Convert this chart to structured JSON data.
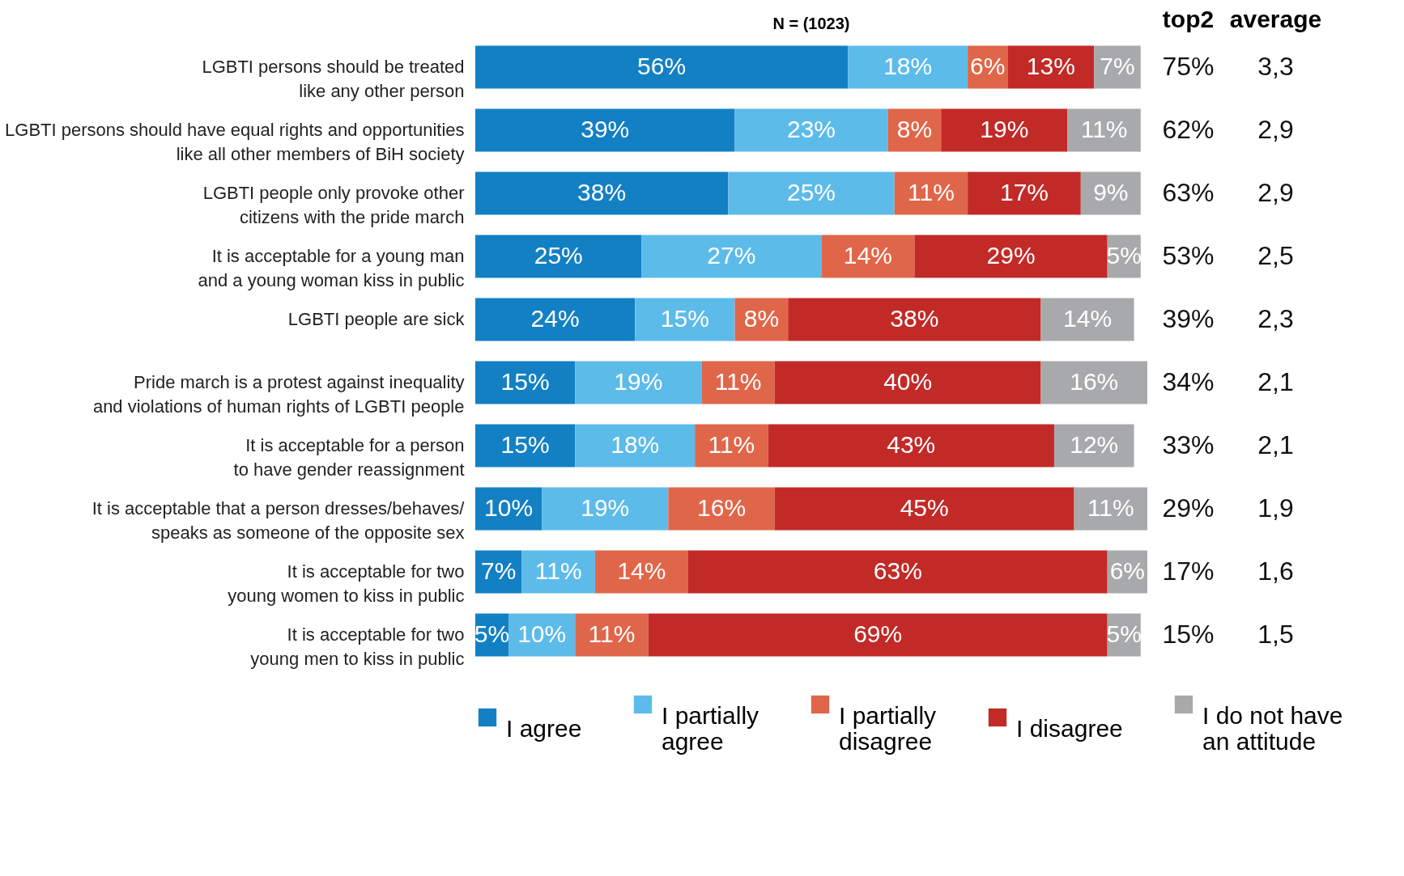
{
  "chart_data": {
    "type": "bar",
    "orientation": "horizontal",
    "stacked": true,
    "tick_labels": "y",
    "grid": false,
    "legend": "bottom",
    "categories": [
      "LGBTI persons should be treated like any other person",
      "LGBTI persons should have equal rights and opportunities like all other members of BiH society",
      "LGBTI people only provoke other citizens with the pride march",
      "It is acceptable for a young man and a young woman kiss in public",
      "LGBTI people are sick",
      "Pride march is a protest against inequality and violations of human rights of LGBTI people",
      "It is acceptable for a person to have gender reassignment",
      "It is acceptable that a person dresses/behaves/ speaks as someone of the opposite sex",
      "It is acceptable for two young women to kiss in public",
      "It is acceptable for two young men to kiss in public"
    ],
    "series": [
      {
        "name": "I agree",
        "color": "#1380c4",
        "values": [
          56,
          39,
          38,
          25,
          24,
          15,
          15,
          10,
          7,
          5
        ],
        "value_labels": [
          "56%",
          "39%",
          "38%",
          "25%",
          "24%",
          "15%",
          "15%",
          "10%",
          "7%",
          "5%"
        ]
      },
      {
        "name": "I partially agree",
        "color": "#5dbbea",
        "values": [
          18,
          23,
          25,
          27,
          15,
          19,
          18,
          19,
          11,
          10
        ],
        "value_labels": [
          "18%",
          "23%",
          "25%",
          "27%",
          "15%",
          "19%",
          "18%",
          "19%",
          "11%",
          "10%"
        ]
      },
      {
        "name": "I partially disagree",
        "color": "#e0664a",
        "values": [
          6,
          8,
          11,
          14,
          8,
          11,
          11,
          16,
          14,
          11
        ],
        "value_labels": [
          "6%",
          "8%",
          "11%",
          "14%",
          "8%",
          "11%",
          "11%",
          "16%",
          "14%",
          "11%"
        ]
      },
      {
        "name": "I disagree",
        "color": "#c22a27",
        "values": [
          13,
          19,
          17,
          29,
          38,
          40,
          43,
          45,
          63,
          69
        ],
        "value_labels": [
          "13%",
          "19%",
          "17%",
          "29%",
          "38%",
          "40%",
          "43%",
          "45%",
          "63%",
          "69%"
        ]
      },
      {
        "name": "I do not have an attitude",
        "color": "#a8a9ab",
        "values": [
          7,
          11,
          9,
          5,
          14,
          16,
          12,
          11,
          6,
          5
        ],
        "value_labels": [
          "7%",
          "11%",
          "9%",
          "5%",
          "14%",
          "16%",
          "12%",
          "11%",
          "6%",
          "5%"
        ]
      }
    ],
    "annotations": [
      "N = (1023)",
      "top2",
      "average",
      "75%",
      "3,3",
      "62%",
      "2,9",
      "63%",
      "2,9",
      "53%",
      "2,5",
      "39%",
      "2,3",
      "34%",
      "2,1",
      "33%",
      "2,1",
      "29%",
      "1,9",
      "17%",
      "1,6",
      "15%",
      "1,5"
    ]
  }
}
